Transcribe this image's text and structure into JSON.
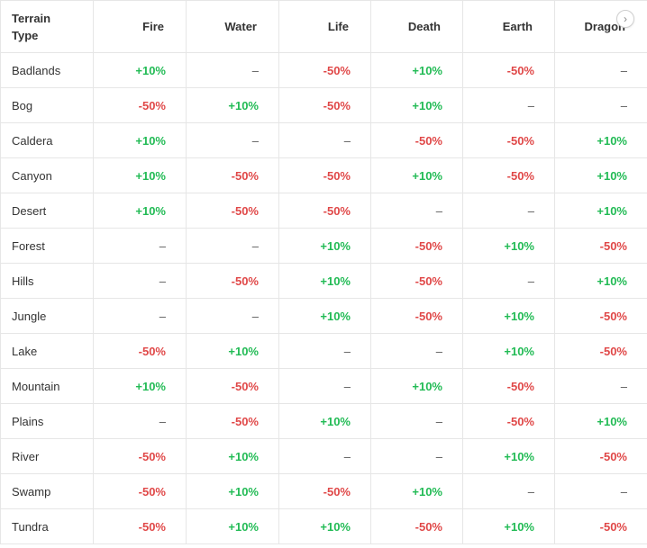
{
  "table": {
    "headers": [
      "Terrain Type",
      "Fire",
      "Water",
      "Life",
      "Death",
      "Earth",
      "Dragon"
    ],
    "rows": [
      {
        "terrain": "Badlands",
        "values": [
          "+10%",
          "–",
          "-50%",
          "+10%",
          "-50%",
          "–"
        ]
      },
      {
        "terrain": "Bog",
        "values": [
          "-50%",
          "+10%",
          "-50%",
          "+10%",
          "–",
          "–"
        ]
      },
      {
        "terrain": "Caldera",
        "values": [
          "+10%",
          "–",
          "–",
          "-50%",
          "-50%",
          "+10%"
        ]
      },
      {
        "terrain": "Canyon",
        "values": [
          "+10%",
          "-50%",
          "-50%",
          "+10%",
          "-50%",
          "+10%"
        ]
      },
      {
        "terrain": "Desert",
        "values": [
          "+10%",
          "-50%",
          "-50%",
          "–",
          "–",
          "+10%"
        ]
      },
      {
        "terrain": "Forest",
        "values": [
          "–",
          "–",
          "+10%",
          "-50%",
          "+10%",
          "-50%"
        ]
      },
      {
        "terrain": "Hills",
        "values": [
          "–",
          "-50%",
          "+10%",
          "-50%",
          "–",
          "+10%"
        ]
      },
      {
        "terrain": "Jungle",
        "values": [
          "–",
          "–",
          "+10%",
          "-50%",
          "+10%",
          "-50%"
        ]
      },
      {
        "terrain": "Lake",
        "values": [
          "-50%",
          "+10%",
          "–",
          "–",
          "+10%",
          "-50%"
        ]
      },
      {
        "terrain": "Mountain",
        "values": [
          "+10%",
          "-50%",
          "–",
          "+10%",
          "-50%",
          "–"
        ]
      },
      {
        "terrain": "Plains",
        "values": [
          "–",
          "-50%",
          "+10%",
          "–",
          "-50%",
          "+10%"
        ]
      },
      {
        "terrain": "River",
        "values": [
          "-50%",
          "+10%",
          "–",
          "–",
          "+10%",
          "-50%"
        ]
      },
      {
        "terrain": "Swamp",
        "values": [
          "-50%",
          "+10%",
          "-50%",
          "+10%",
          "–",
          "–"
        ]
      },
      {
        "terrain": "Tundra",
        "values": [
          "-50%",
          "+10%",
          "+10%",
          "-50%",
          "+10%",
          "-50%"
        ]
      }
    ]
  },
  "scroll_button": {
    "icon": "chevron-right-icon",
    "glyph": "›"
  },
  "colors": {
    "positive": "#22bb55",
    "negative": "#e04848",
    "border": "#e6e6e6",
    "text": "#333333"
  }
}
